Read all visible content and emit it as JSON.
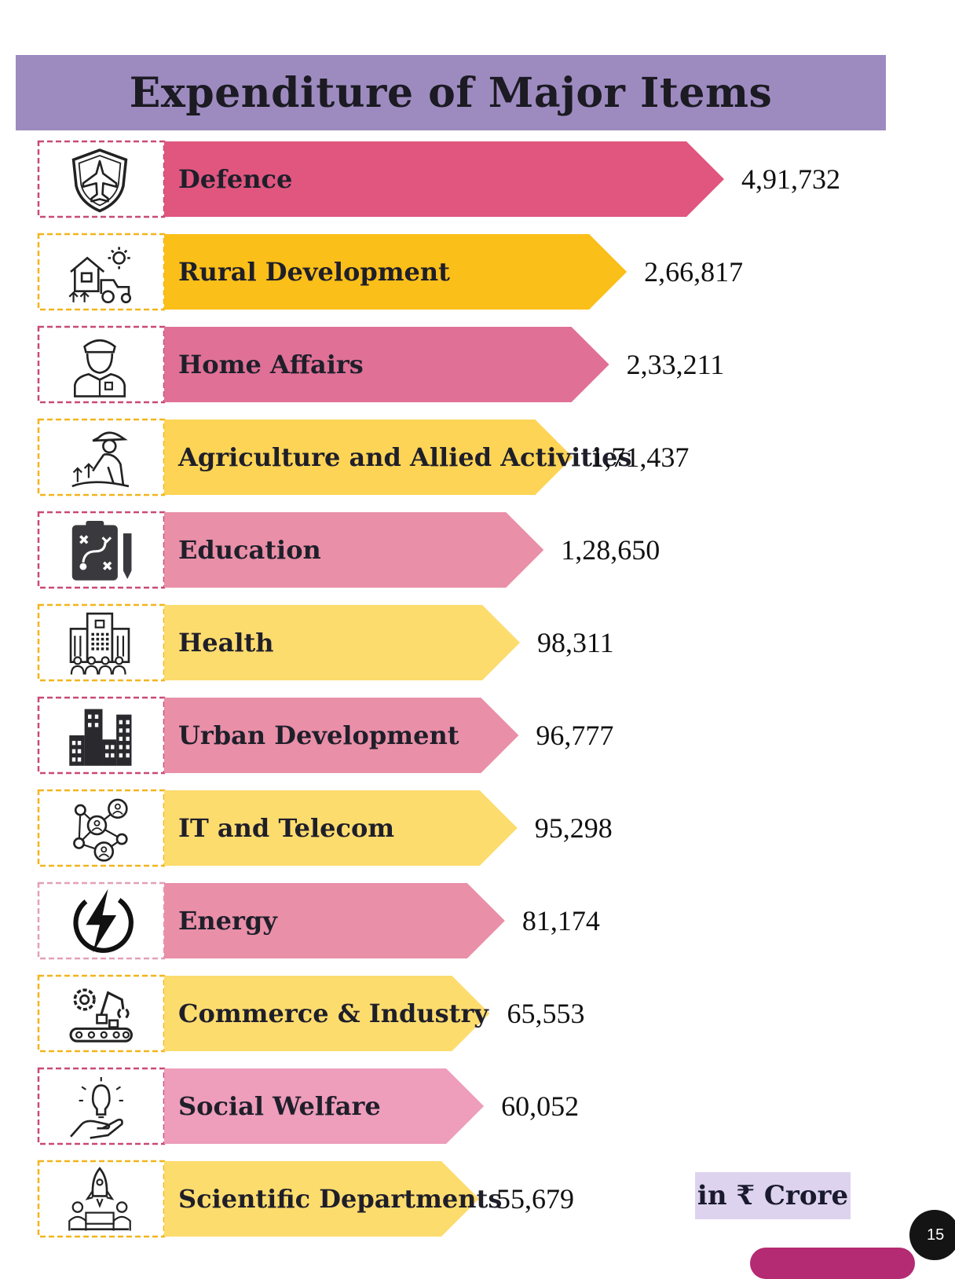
{
  "title": "Expenditure of Major Items",
  "unit_note": "in ₹ Crore",
  "page_number": "15",
  "colors": {
    "banner": "#9d8bc0",
    "pink_dark": "#e0567f",
    "pink_mid": "#e07096",
    "pink_light": "#e98fa8",
    "pink_pale": "#ee9dbb",
    "yellow_dark": "#fbbf19",
    "yellow_mid": "#fdd455",
    "yellow_light": "#fddc6e"
  },
  "chart_data": {
    "type": "bar",
    "orientation": "horizontal",
    "title": "Expenditure of Major Items",
    "categories": [
      "Defence",
      "Rural Development",
      "Home Affairs",
      "Agriculture and Allied Activities",
      "Education",
      "Health",
      "Urban Development",
      "IT and Telecom",
      "Energy",
      "Commerce & Industry",
      "Social Welfare",
      "Scientific Departments"
    ],
    "values": [
      491732,
      266817,
      233211,
      171437,
      128650,
      98311,
      96777,
      95298,
      81174,
      65553,
      60052,
      55679
    ],
    "value_labels": [
      "4,91,732",
      "2,66,817",
      "2,33,211",
      "1,71,437",
      "1,28,650",
      "98,311",
      "96,777",
      "95,298",
      "81,174",
      "65,553",
      "60,052",
      "55,679"
    ],
    "icons": [
      "shield-jet-icon",
      "farmhouse-tractor-icon",
      "police-officer-icon",
      "farmer-planting-icon",
      "strategy-clipboard-icon",
      "hospital-people-icon",
      "city-buildings-icon",
      "network-people-icon",
      "lightning-bolt-icon",
      "factory-robot-arm-icon",
      "idea-hand-icon",
      "rocket-team-icon"
    ],
    "bar_colors": [
      "#e0567f",
      "#fbbf19",
      "#e07096",
      "#fdd455",
      "#e98fa8",
      "#fddc6e",
      "#e98fa8",
      "#fddc6e",
      "#e98fa8",
      "#fddc6e",
      "#ee9dbb",
      "#fddc6e"
    ],
    "frame_colors": [
      "#c94a74",
      "#f2b51c",
      "#c94a74",
      "#f2b51c",
      "#c94a74",
      "#f2b51c",
      "#c94a74",
      "#f2b51c",
      "#e3a0b8",
      "#f2b51c",
      "#c94a74",
      "#f2b51c"
    ],
    "xlim": [
      0,
      500000
    ],
    "grid": false,
    "legend": "none"
  }
}
